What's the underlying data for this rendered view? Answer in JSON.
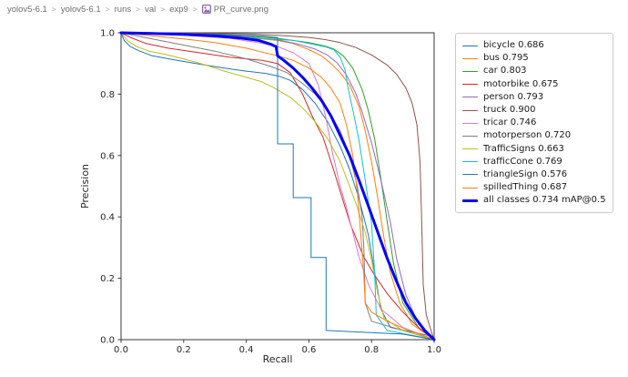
{
  "breadcrumb": {
    "items": [
      "yolov5-6.1",
      "yolov5-6.1",
      "runs",
      "val",
      "exp9",
      "PR_curve.png"
    ],
    "separator": ">",
    "file_icon": "image-file-icon",
    "file_icon_color": "#8a63b3"
  },
  "chart_data": {
    "type": "line",
    "title": "",
    "xlabel": "Recall",
    "ylabel": "Precision",
    "xlim": [
      0.0,
      1.0
    ],
    "ylim": [
      0.0,
      1.0
    ],
    "xticks": [
      "0.0",
      "0.2",
      "0.4",
      "0.6",
      "0.8",
      "1.0"
    ],
    "yticks": [
      "0.0",
      "0.2",
      "0.4",
      "0.6",
      "0.8",
      "1.0"
    ],
    "grid": false,
    "legend_position": "outside-right-top",
    "series": [
      {
        "name": "bicycle",
        "label": "bicycle 0.686",
        "color": "#1f77b4",
        "lw": 1,
        "points": [
          [
            0,
            1
          ],
          [
            0.01,
            0.975
          ],
          [
            0.03,
            0.955
          ],
          [
            0.06,
            0.94
          ],
          [
            0.1,
            0.925
          ],
          [
            0.17,
            0.912
          ],
          [
            0.25,
            0.898
          ],
          [
            0.33,
            0.885
          ],
          [
            0.4,
            0.875
          ],
          [
            0.46,
            0.868
          ],
          [
            0.5,
            0.86
          ],
          [
            0.54,
            0.845
          ],
          [
            0.58,
            0.815
          ],
          [
            0.62,
            0.77
          ],
          [
            0.66,
            0.71
          ],
          [
            0.7,
            0.63
          ],
          [
            0.73,
            0.555
          ],
          [
            0.76,
            0.46
          ],
          [
            0.79,
            0.34
          ],
          [
            0.81,
            0.22
          ],
          [
            0.83,
            0.1
          ],
          [
            0.86,
            0.04
          ],
          [
            0.99,
            0.012
          ],
          [
            1,
            0
          ]
        ]
      },
      {
        "name": "bus",
        "label": "bus 0.795",
        "color": "#ff7f0e",
        "lw": 1,
        "points": [
          [
            0,
            1
          ],
          [
            0.2,
            0.995
          ],
          [
            0.4,
            0.985
          ],
          [
            0.5,
            0.975
          ],
          [
            0.55,
            0.965
          ],
          [
            0.6,
            0.945
          ],
          [
            0.64,
            0.925
          ],
          [
            0.67,
            0.9
          ],
          [
            0.7,
            0.87
          ],
          [
            0.73,
            0.83
          ],
          [
            0.76,
            0.76
          ],
          [
            0.78,
            0.68
          ],
          [
            0.8,
            0.58
          ],
          [
            0.82,
            0.46
          ],
          [
            0.84,
            0.33
          ],
          [
            0.86,
            0.22
          ],
          [
            0.89,
            0.12
          ],
          [
            0.93,
            0.05
          ],
          [
            1,
            0
          ]
        ]
      },
      {
        "name": "car",
        "label": "car 0.803",
        "color": "#2ca02c",
        "lw": 1,
        "points": [
          [
            0,
            1
          ],
          [
            0.2,
            0.997
          ],
          [
            0.4,
            0.99
          ],
          [
            0.5,
            0.982
          ],
          [
            0.6,
            0.968
          ],
          [
            0.65,
            0.957
          ],
          [
            0.68,
            0.947
          ],
          [
            0.71,
            0.925
          ],
          [
            0.74,
            0.885
          ],
          [
            0.77,
            0.815
          ],
          [
            0.79,
            0.745
          ],
          [
            0.81,
            0.655
          ],
          [
            0.83,
            0.525
          ],
          [
            0.85,
            0.385
          ],
          [
            0.87,
            0.25
          ],
          [
            0.9,
            0.12
          ],
          [
            0.95,
            0.04
          ],
          [
            1,
            0
          ]
        ]
      },
      {
        "name": "motorbike",
        "label": "motorbike 0.675",
        "color": "#d62728",
        "lw": 1,
        "points": [
          [
            0,
            1
          ],
          [
            0.03,
            0.985
          ],
          [
            0.08,
            0.965
          ],
          [
            0.15,
            0.95
          ],
          [
            0.25,
            0.935
          ],
          [
            0.35,
            0.92
          ],
          [
            0.45,
            0.91
          ],
          [
            0.5,
            0.9
          ],
          [
            0.54,
            0.87
          ],
          [
            0.58,
            0.8
          ],
          [
            0.61,
            0.73
          ],
          [
            0.645,
            0.66
          ],
          [
            0.68,
            0.55
          ],
          [
            0.71,
            0.45
          ],
          [
            0.735,
            0.37
          ],
          [
            0.775,
            0.27
          ],
          [
            0.81,
            0.21
          ],
          [
            0.85,
            0.15
          ],
          [
            0.9,
            0.09
          ],
          [
            0.95,
            0.04
          ],
          [
            1,
            0
          ]
        ]
      },
      {
        "name": "person",
        "label": "person 0.793",
        "color": "#9467bd",
        "lw": 1,
        "points": [
          [
            0,
            1
          ],
          [
            0.2,
            0.996
          ],
          [
            0.4,
            0.987
          ],
          [
            0.5,
            0.977
          ],
          [
            0.57,
            0.962
          ],
          [
            0.62,
            0.947
          ],
          [
            0.66,
            0.927
          ],
          [
            0.69,
            0.902
          ],
          [
            0.72,
            0.862
          ],
          [
            0.75,
            0.802
          ],
          [
            0.77,
            0.742
          ],
          [
            0.8,
            0.642
          ],
          [
            0.83,
            0.52
          ],
          [
            0.86,
            0.385
          ],
          [
            0.88,
            0.265
          ],
          [
            0.91,
            0.145
          ],
          [
            0.95,
            0.05
          ],
          [
            1,
            0
          ]
        ]
      },
      {
        "name": "truck",
        "label": "truck 0.900",
        "color": "#8c564b",
        "lw": 1,
        "points": [
          [
            0,
            1
          ],
          [
            0.2,
            0.999
          ],
          [
            0.4,
            0.996
          ],
          [
            0.5,
            0.992
          ],
          [
            0.6,
            0.985
          ],
          [
            0.65,
            0.978
          ],
          [
            0.7,
            0.968
          ],
          [
            0.75,
            0.952
          ],
          [
            0.8,
            0.928
          ],
          [
            0.85,
            0.895
          ],
          [
            0.88,
            0.865
          ],
          [
            0.91,
            0.82
          ],
          [
            0.93,
            0.77
          ],
          [
            0.945,
            0.7
          ],
          [
            0.955,
            0.58
          ],
          [
            0.96,
            0.4
          ],
          [
            0.965,
            0.18
          ],
          [
            0.975,
            0.08
          ],
          [
            0.99,
            0.03
          ],
          [
            1,
            0
          ]
        ]
      },
      {
        "name": "tricar",
        "label": "tricar 0.746",
        "color": "#e377c2",
        "lw": 1,
        "points": [
          [
            0,
            1
          ],
          [
            0.2,
            0.992
          ],
          [
            0.35,
            0.982
          ],
          [
            0.45,
            0.966
          ],
          [
            0.5,
            0.955
          ],
          [
            0.55,
            0.935
          ],
          [
            0.6,
            0.9
          ],
          [
            0.63,
            0.83
          ],
          [
            0.655,
            0.72
          ],
          [
            0.675,
            0.61
          ],
          [
            0.7,
            0.5
          ],
          [
            0.72,
            0.43
          ],
          [
            0.74,
            0.35
          ],
          [
            0.76,
            0.27
          ],
          [
            0.79,
            0.18
          ],
          [
            0.83,
            0.1
          ],
          [
            0.9,
            0.04
          ],
          [
            1,
            0
          ]
        ]
      },
      {
        "name": "motorperson",
        "label": "motorperson 0.720",
        "color": "#7f7f7f",
        "lw": 1,
        "points": [
          [
            0,
            1
          ],
          [
            0.05,
            0.99
          ],
          [
            0.1,
            0.98
          ],
          [
            0.2,
            0.96
          ],
          [
            0.3,
            0.94
          ],
          [
            0.4,
            0.915
          ],
          [
            0.48,
            0.89
          ],
          [
            0.53,
            0.87
          ],
          [
            0.58,
            0.835
          ],
          [
            0.62,
            0.8
          ],
          [
            0.66,
            0.75
          ],
          [
            0.7,
            0.68
          ],
          [
            0.73,
            0.6
          ],
          [
            0.755,
            0.5
          ],
          [
            0.77,
            0.4
          ],
          [
            0.776,
            0.29
          ],
          [
            0.78,
            0.12
          ],
          [
            0.8,
            0.06
          ],
          [
            0.9,
            0.03
          ],
          [
            1,
            0
          ]
        ]
      },
      {
        "name": "TrafficSigns",
        "label": "TrafficSigns 0.663",
        "color": "#bcbd22",
        "lw": 1,
        "points": [
          [
            0,
            1
          ],
          [
            0.02,
            0.975
          ],
          [
            0.05,
            0.955
          ],
          [
            0.09,
            0.94
          ],
          [
            0.14,
            0.93
          ],
          [
            0.2,
            0.915
          ],
          [
            0.27,
            0.895
          ],
          [
            0.33,
            0.875
          ],
          [
            0.4,
            0.855
          ],
          [
            0.45,
            0.84
          ],
          [
            0.49,
            0.82
          ],
          [
            0.54,
            0.79
          ],
          [
            0.58,
            0.755
          ],
          [
            0.62,
            0.71
          ],
          [
            0.66,
            0.655
          ],
          [
            0.7,
            0.58
          ],
          [
            0.73,
            0.5
          ],
          [
            0.755,
            0.43
          ],
          [
            0.78,
            0.35
          ],
          [
            0.8,
            0.26
          ],
          [
            0.82,
            0.15
          ],
          [
            0.84,
            0.07
          ],
          [
            0.9,
            0.03
          ],
          [
            1,
            0
          ]
        ]
      },
      {
        "name": "trafficCone",
        "label": "trafficCone 0.769",
        "color": "#17becf",
        "lw": 1,
        "points": [
          [
            0,
            1
          ],
          [
            0.2,
            0.995
          ],
          [
            0.4,
            0.985
          ],
          [
            0.55,
            0.975
          ],
          [
            0.6,
            0.965
          ],
          [
            0.65,
            0.955
          ],
          [
            0.68,
            0.945
          ],
          [
            0.7,
            0.92
          ],
          [
            0.715,
            0.88
          ],
          [
            0.725,
            0.82
          ],
          [
            0.74,
            0.75
          ],
          [
            0.76,
            0.65
          ],
          [
            0.78,
            0.52
          ],
          [
            0.8,
            0.38
          ],
          [
            0.81,
            0.22
          ],
          [
            0.815,
            0.08
          ],
          [
            0.85,
            0.03
          ],
          [
            1,
            0
          ]
        ]
      },
      {
        "name": "triangleSign",
        "label": "triangleSign 0.576",
        "color": "#1f77b4",
        "lw": 1,
        "points": [
          [
            0,
            1
          ],
          [
            0.3,
            0.995
          ],
          [
            0.45,
            0.99
          ],
          [
            0.497,
            0.985
          ],
          [
            0.5,
            0.985
          ],
          [
            0.5,
            0.638
          ],
          [
            0.55,
            0.638
          ],
          [
            0.55,
            0.463
          ],
          [
            0.607,
            0.463
          ],
          [
            0.607,
            0.268
          ],
          [
            0.655,
            0.268
          ],
          [
            0.655,
            0.03
          ],
          [
            0.9,
            0.018
          ],
          [
            1,
            0
          ]
        ]
      },
      {
        "name": "spilledThing",
        "label": "spilledThing 0.687",
        "color": "#ff7f0e",
        "lw": 1,
        "points": [
          [
            0,
            1
          ],
          [
            0.1,
            0.99
          ],
          [
            0.2,
            0.98
          ],
          [
            0.3,
            0.968
          ],
          [
            0.4,
            0.95
          ],
          [
            0.5,
            0.925
          ],
          [
            0.55,
            0.91
          ],
          [
            0.6,
            0.885
          ],
          [
            0.64,
            0.855
          ],
          [
            0.67,
            0.82
          ],
          [
            0.7,
            0.77
          ],
          [
            0.72,
            0.7
          ],
          [
            0.74,
            0.6
          ],
          [
            0.755,
            0.48
          ],
          [
            0.765,
            0.35
          ],
          [
            0.775,
            0.22
          ],
          [
            0.78,
            0.12
          ],
          [
            0.8,
            0.09
          ],
          [
            0.85,
            0.06
          ],
          [
            0.92,
            0.03
          ],
          [
            1,
            0
          ]
        ]
      },
      {
        "name": "all classes",
        "label": "all classes 0.734 mAP@0.5",
        "color": "#0000ff",
        "lw": 3,
        "points": [
          [
            0,
            1
          ],
          [
            0.1,
            0.998
          ],
          [
            0.2,
            0.995
          ],
          [
            0.3,
            0.99
          ],
          [
            0.38,
            0.983
          ],
          [
            0.44,
            0.975
          ],
          [
            0.48,
            0.962
          ],
          [
            0.495,
            0.955
          ],
          [
            0.5,
            0.925
          ],
          [
            0.52,
            0.91
          ],
          [
            0.55,
            0.885
          ],
          [
            0.58,
            0.855
          ],
          [
            0.61,
            0.82
          ],
          [
            0.64,
            0.78
          ],
          [
            0.67,
            0.73
          ],
          [
            0.7,
            0.665
          ],
          [
            0.73,
            0.6
          ],
          [
            0.76,
            0.52
          ],
          [
            0.79,
            0.435
          ],
          [
            0.82,
            0.35
          ],
          [
            0.85,
            0.265
          ],
          [
            0.88,
            0.19
          ],
          [
            0.91,
            0.12
          ],
          [
            0.94,
            0.07
          ],
          [
            0.97,
            0.03
          ],
          [
            1,
            0
          ]
        ]
      }
    ]
  }
}
